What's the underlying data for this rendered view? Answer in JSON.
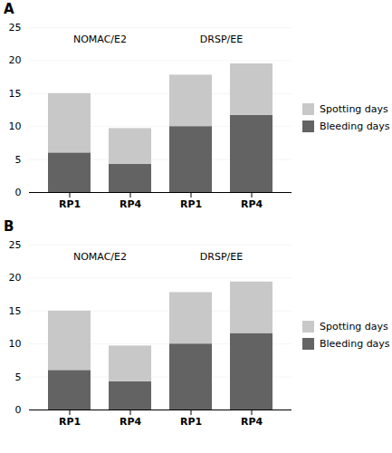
{
  "chart_data": [
    {
      "type": "bar",
      "title": "A",
      "stacked": true,
      "grid": true,
      "legend": "right",
      "categories": [
        "RP1",
        "RP4",
        "RP1",
        "RP4"
      ],
      "series": [
        {
          "name": "Bleeding days",
          "color": "#636363",
          "values": [
            6.0,
            4.3,
            10.0,
            11.7
          ]
        },
        {
          "name": "Spotting days",
          "color": "#c8c8c8",
          "values": [
            9.0,
            5.4,
            7.8,
            7.8
          ]
        }
      ],
      "ylim": [
        0,
        25
      ],
      "yticks": [
        0,
        5,
        10,
        15,
        20,
        25
      ],
      "annotations": [
        {
          "text": "NOMAC/E2",
          "y": 23.8
        },
        {
          "text": "DRSP/EE",
          "y": 23.8
        }
      ]
    },
    {
      "type": "bar",
      "title": "B",
      "stacked": true,
      "grid": true,
      "legend": "right",
      "categories": [
        "RP1",
        "RP4",
        "RP1",
        "RP4"
      ],
      "series": [
        {
          "name": "Bleeding days",
          "color": "#636363",
          "values": [
            6.0,
            4.3,
            10.0,
            11.6
          ]
        },
        {
          "name": "Spotting days",
          "color": "#c8c8c8",
          "values": [
            9.0,
            5.4,
            7.8,
            7.8
          ]
        }
      ],
      "ylim": [
        0,
        25
      ],
      "yticks": [
        0,
        5,
        10,
        15,
        20,
        25
      ],
      "annotations": [
        {
          "text": "NOMAC/E2",
          "y": 23.8
        },
        {
          "text": "DRSP/EE",
          "y": 23.8
        }
      ]
    }
  ]
}
